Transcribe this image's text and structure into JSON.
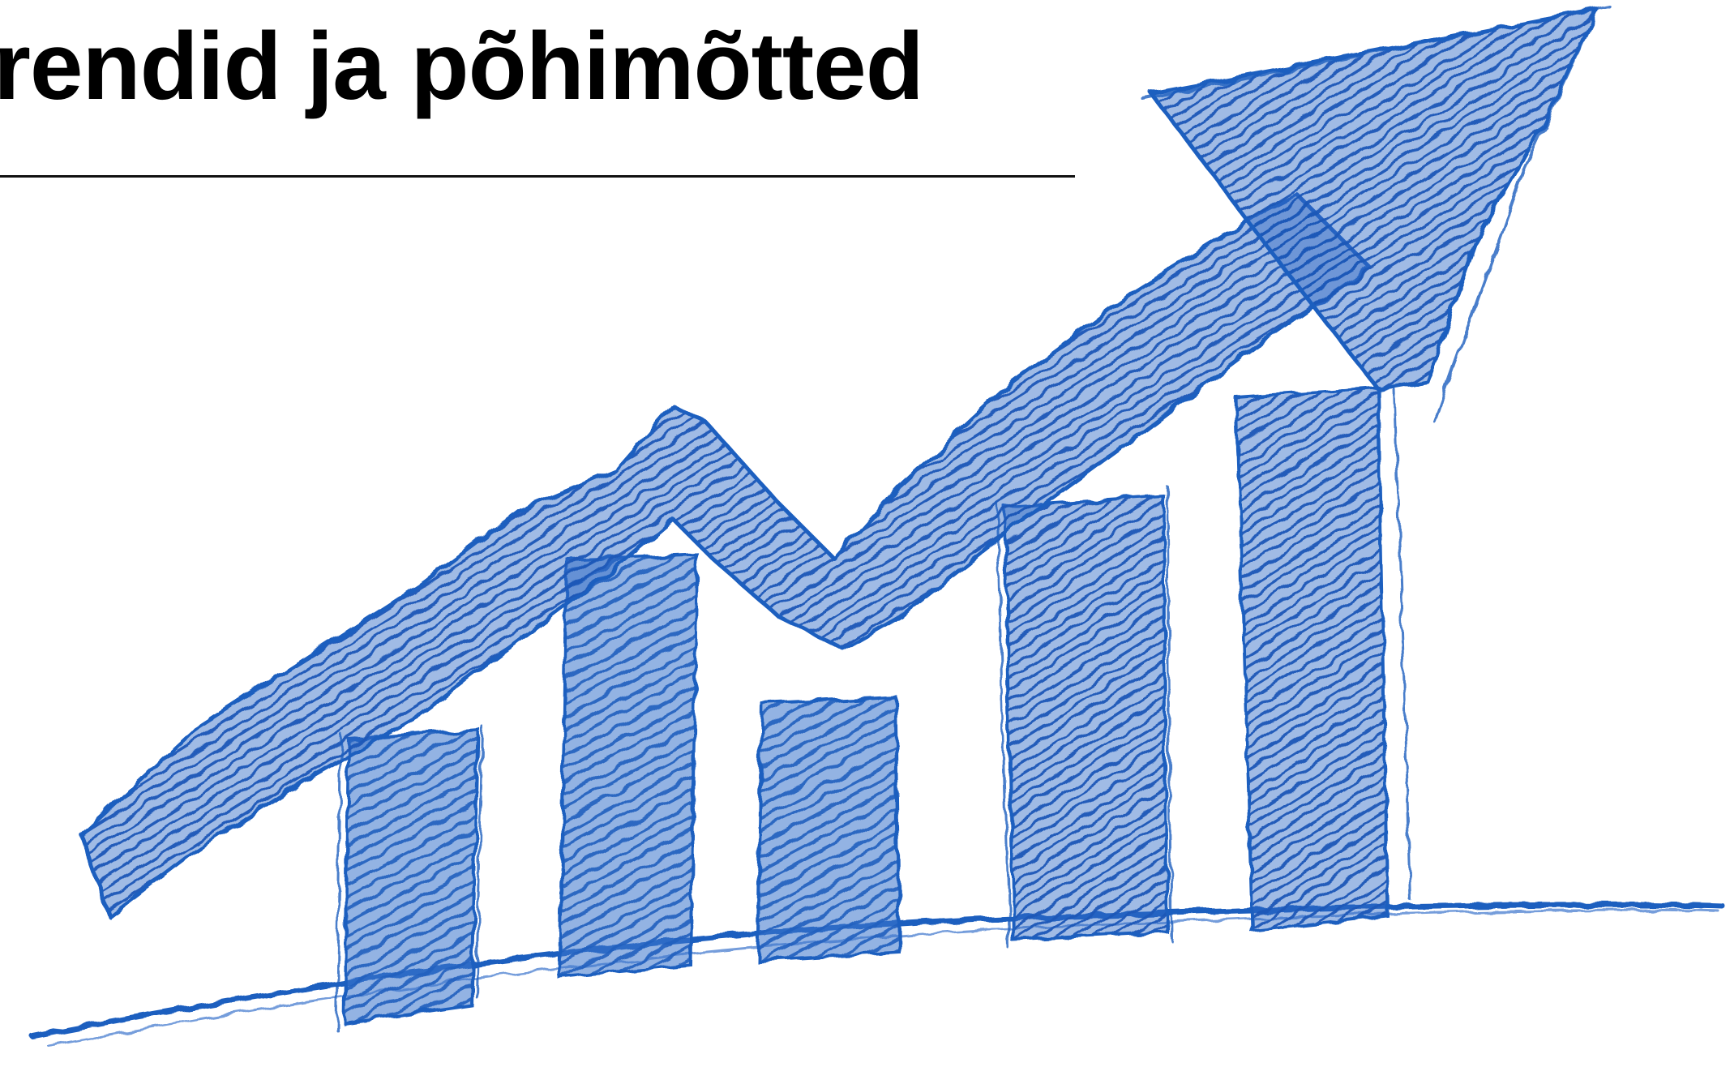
{
  "title": "rendid ja põhimõtted",
  "illustration": {
    "name": "hand-drawn-growth-chart",
    "ink_color": "#1f5fbf",
    "bars": 5,
    "arrow": "upward-trend-arrow"
  }
}
